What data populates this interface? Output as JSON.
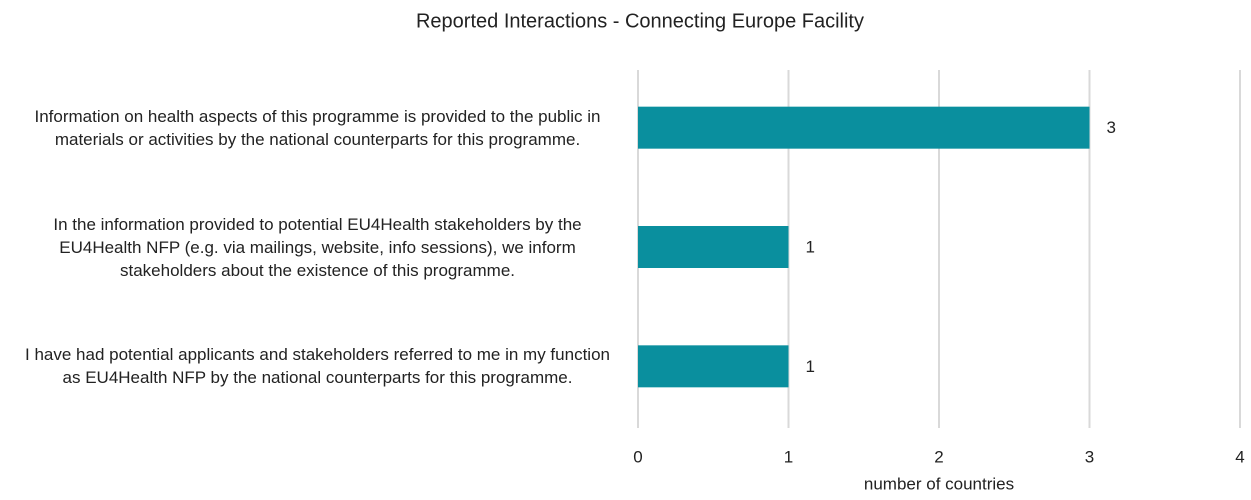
{
  "chart_data": {
    "type": "bar",
    "orientation": "horizontal",
    "title": "Reported Interactions - Connecting Europe Facility",
    "categories": [
      "Information on health aspects of this programme is provided to the public in materials or activities by the national counterparts for this programme.",
      "In the information provided to potential EU4Health stakeholders by the EU4Health NFP (e.g. via mailings, website, info sessions), we inform stakeholders about the existence of this programme.",
      "I have had potential applicants and stakeholders referred to me in my function as EU4Health NFP by the national counterparts for this programme."
    ],
    "values": [
      3,
      1,
      1
    ],
    "color": "#0a8f9e",
    "x_label": "number of countries",
    "xlim": [
      0,
      4
    ],
    "xticks": [
      0,
      1,
      2,
      3,
      4
    ],
    "grid": true
  }
}
